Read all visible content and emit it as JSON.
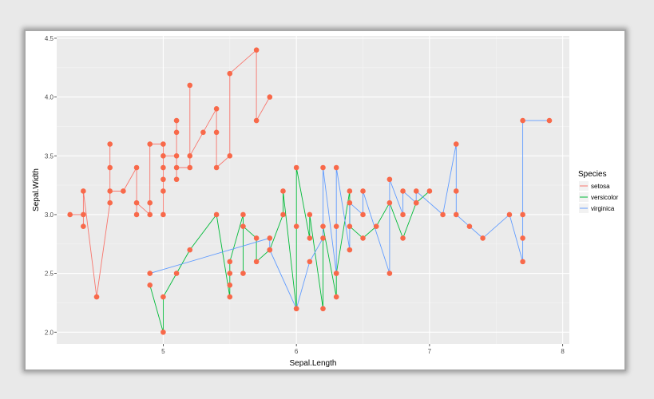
{
  "chart_data": {
    "type": "line",
    "xlabel": "Sepal.Length",
    "ylabel": "Sepal.Width",
    "xlim": [
      4.2,
      8.05
    ],
    "ylim": [
      1.9,
      4.52
    ],
    "x_ticks": [
      5,
      6,
      7,
      8
    ],
    "x_tick_labels": [
      "5",
      "6",
      "7",
      "8"
    ],
    "y_ticks": [
      2.0,
      2.5,
      3.0,
      3.5,
      4.0,
      4.5
    ],
    "y_tick_labels": [
      "2.0",
      "2.5",
      "3.0",
      "3.5",
      "4.0",
      "4.5"
    ],
    "grid": true,
    "legend_position": "right",
    "legend_title": "Species",
    "point_color": "#f8694a",
    "panel_color": "#ebebeb",
    "series": [
      {
        "name": "setosa",
        "color": "#f8766d",
        "points": [
          [
            4.3,
            3.0
          ],
          [
            4.4,
            3.0
          ],
          [
            4.4,
            2.9
          ],
          [
            4.4,
            3.2
          ],
          [
            4.5,
            2.3
          ],
          [
            4.6,
            3.1
          ],
          [
            4.6,
            3.4
          ],
          [
            4.6,
            3.6
          ],
          [
            4.6,
            3.2
          ],
          [
            4.7,
            3.2
          ],
          [
            4.8,
            3.4
          ],
          [
            4.8,
            3.0
          ],
          [
            4.8,
            3.1
          ],
          [
            4.9,
            3.0
          ],
          [
            4.9,
            3.1
          ],
          [
            4.9,
            3.6
          ],
          [
            5.0,
            3.6
          ],
          [
            5.0,
            3.4
          ],
          [
            5.0,
            3.0
          ],
          [
            5.0,
            3.3
          ],
          [
            5.0,
            3.2
          ],
          [
            5.0,
            3.5
          ],
          [
            5.1,
            3.5
          ],
          [
            5.1,
            3.3
          ],
          [
            5.1,
            3.8
          ],
          [
            5.1,
            3.7
          ],
          [
            5.1,
            3.4
          ],
          [
            5.2,
            3.4
          ],
          [
            5.2,
            4.1
          ],
          [
            5.2,
            3.5
          ],
          [
            5.3,
            3.7
          ],
          [
            5.4,
            3.9
          ],
          [
            5.4,
            3.7
          ],
          [
            5.4,
            3.4
          ],
          [
            5.5,
            3.5
          ],
          [
            5.5,
            4.2
          ],
          [
            5.7,
            4.4
          ],
          [
            5.7,
            3.8
          ],
          [
            5.8,
            4.0
          ]
        ]
      },
      {
        "name": "versicolor",
        "color": "#00ba38",
        "points": [
          [
            4.9,
            2.4
          ],
          [
            5.0,
            2.0
          ],
          [
            5.0,
            2.3
          ],
          [
            5.1,
            2.5
          ],
          [
            5.2,
            2.7
          ],
          [
            5.4,
            3.0
          ],
          [
            5.5,
            2.3
          ],
          [
            5.5,
            2.4
          ],
          [
            5.5,
            2.5
          ],
          [
            5.5,
            2.6
          ],
          [
            5.6,
            3.0
          ],
          [
            5.6,
            2.5
          ],
          [
            5.6,
            2.9
          ],
          [
            5.7,
            2.8
          ],
          [
            5.7,
            2.6
          ],
          [
            5.8,
            2.7
          ],
          [
            5.9,
            3.0
          ],
          [
            5.9,
            3.2
          ],
          [
            6.0,
            2.2
          ],
          [
            6.0,
            2.9
          ],
          [
            6.0,
            3.4
          ],
          [
            6.1,
            2.8
          ],
          [
            6.1,
            3.0
          ],
          [
            6.2,
            2.2
          ],
          [
            6.2,
            2.9
          ],
          [
            6.3,
            2.3
          ],
          [
            6.3,
            2.5
          ],
          [
            6.4,
            3.2
          ],
          [
            6.4,
            2.9
          ],
          [
            6.5,
            2.8
          ],
          [
            6.6,
            2.9
          ],
          [
            6.7,
            3.1
          ],
          [
            6.8,
            2.8
          ],
          [
            6.9,
            3.1
          ],
          [
            7.0,
            3.2
          ]
        ]
      },
      {
        "name": "virginica",
        "color": "#619cff",
        "points": [
          [
            4.9,
            2.5
          ],
          [
            5.8,
            2.8
          ],
          [
            5.8,
            2.7
          ],
          [
            6.0,
            2.2
          ],
          [
            6.1,
            2.6
          ],
          [
            6.2,
            2.8
          ],
          [
            6.2,
            3.4
          ],
          [
            6.3,
            2.5
          ],
          [
            6.3,
            2.9
          ],
          [
            6.3,
            3.4
          ],
          [
            6.4,
            2.7
          ],
          [
            6.4,
            3.1
          ],
          [
            6.5,
            3.0
          ],
          [
            6.5,
            3.2
          ],
          [
            6.7,
            2.5
          ],
          [
            6.7,
            3.3
          ],
          [
            6.8,
            3.0
          ],
          [
            6.8,
            3.2
          ],
          [
            6.9,
            3.1
          ],
          [
            6.9,
            3.2
          ],
          [
            7.1,
            3.0
          ],
          [
            7.2,
            3.6
          ],
          [
            7.2,
            3.2
          ],
          [
            7.2,
            3.0
          ],
          [
            7.3,
            2.9
          ],
          [
            7.4,
            2.8
          ],
          [
            7.6,
            3.0
          ],
          [
            7.7,
            2.6
          ],
          [
            7.7,
            2.8
          ],
          [
            7.7,
            3.0
          ],
          [
            7.7,
            3.8
          ],
          [
            7.9,
            3.8
          ]
        ]
      }
    ]
  }
}
